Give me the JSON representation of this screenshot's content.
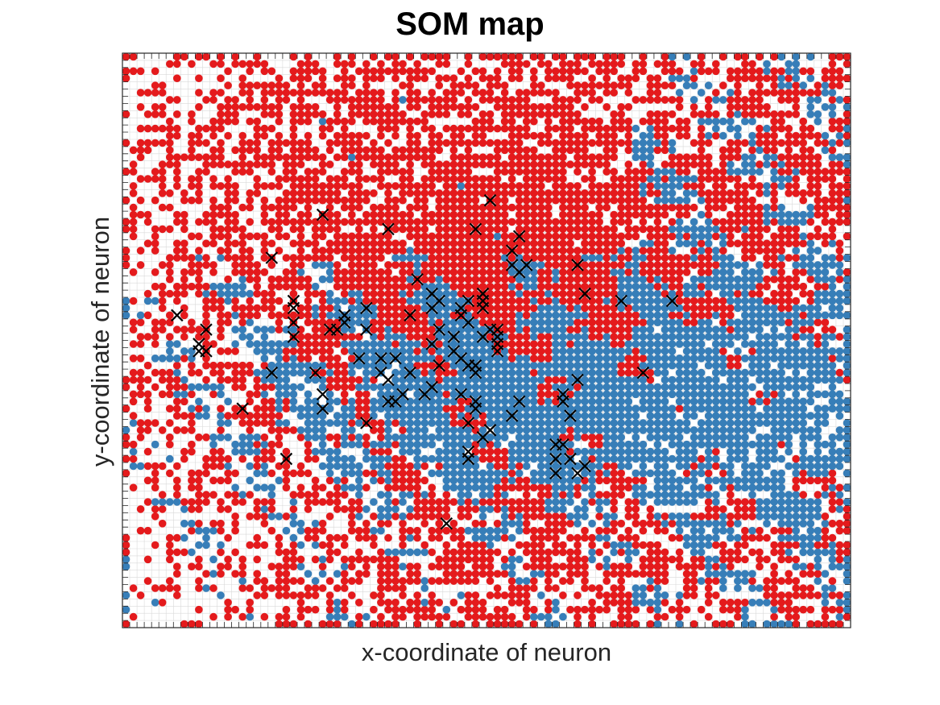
{
  "chart_data": {
    "type": "scatter",
    "title": "SOM map",
    "xlabel": "x-coordinate of neuron",
    "ylabel": "y-coordinate of neuron",
    "xlim": [
      0,
      100
    ],
    "ylim": [
      0,
      80
    ],
    "grid": true,
    "tick_labels": false,
    "lattice": {
      "cols": 100,
      "rows": 80
    },
    "class_colors": {
      "class_1": "#e41a1c",
      "class_2": "#377eb8"
    },
    "marker_color": "#000000",
    "series": [
      {
        "kind": "dots",
        "color": "#e41a1c",
        "note": "neurons with dominant class 1"
      },
      {
        "kind": "dots",
        "color": "#377eb8",
        "note": "neurons with dominant class 2"
      },
      {
        "kind": "cross",
        "color": "#000000",
        "points": [
          [
            7,
            43
          ],
          [
            11,
            41
          ],
          [
            10,
            38
          ],
          [
            11,
            38
          ],
          [
            10,
            39
          ],
          [
            16,
            30
          ],
          [
            20,
            35
          ],
          [
            20,
            51
          ],
          [
            22,
            23
          ],
          [
            23,
            40
          ],
          [
            23,
            42
          ],
          [
            23,
            44
          ],
          [
            23,
            45
          ],
          [
            26,
            35
          ],
          [
            27,
            32
          ],
          [
            27,
            30
          ],
          [
            27,
            57
          ],
          [
            28,
            41
          ],
          [
            29,
            41
          ],
          [
            30,
            43
          ],
          [
            30,
            42
          ],
          [
            32,
            37
          ],
          [
            33,
            28
          ],
          [
            33,
            41
          ],
          [
            33,
            44
          ],
          [
            35,
            37
          ],
          [
            35,
            35
          ],
          [
            36,
            31
          ],
          [
            36,
            34
          ],
          [
            37,
            37
          ],
          [
            36,
            55
          ],
          [
            37,
            31
          ],
          [
            38,
            32
          ],
          [
            39,
            43
          ],
          [
            39,
            35
          ],
          [
            40,
            48
          ],
          [
            42,
            33
          ],
          [
            42,
            44
          ],
          [
            42,
            46
          ],
          [
            42,
            39
          ],
          [
            43,
            45
          ],
          [
            43,
            41
          ],
          [
            43,
            36
          ],
          [
            41,
            32
          ],
          [
            46,
            37
          ],
          [
            47,
            36
          ],
          [
            47,
            23
          ],
          [
            47,
            28
          ],
          [
            48,
            31
          ],
          [
            49,
            46
          ],
          [
            44,
            14
          ],
          [
            45,
            38
          ],
          [
            45,
            40
          ],
          [
            46,
            43
          ],
          [
            47,
            45
          ],
          [
            47,
            42
          ],
          [
            50,
            41
          ],
          [
            47,
            24
          ],
          [
            49,
            45
          ],
          [
            46,
            32
          ],
          [
            48,
            30
          ],
          [
            48,
            36
          ],
          [
            46,
            44
          ],
          [
            49,
            44
          ],
          [
            49,
            26
          ],
          [
            50,
            27
          ],
          [
            50,
            27
          ],
          [
            51,
            39
          ],
          [
            51,
            38
          ],
          [
            49,
            40
          ],
          [
            51,
            41
          ],
          [
            50,
            59
          ],
          [
            53,
            52
          ],
          [
            53,
            50
          ],
          [
            54,
            49
          ],
          [
            48,
            55
          ],
          [
            54,
            54
          ],
          [
            54,
            31
          ],
          [
            53,
            29
          ],
          [
            55,
            50
          ],
          [
            59,
            25
          ],
          [
            59,
            23
          ],
          [
            60,
            25
          ],
          [
            59,
            21
          ],
          [
            61,
            23
          ],
          [
            62,
            21
          ],
          [
            63,
            22
          ],
          [
            63,
            46
          ],
          [
            60,
            31
          ],
          [
            61,
            29
          ],
          [
            60,
            32
          ],
          [
            62,
            34
          ],
          [
            62,
            50
          ],
          [
            68,
            45
          ],
          [
            71,
            35
          ],
          [
            75,
            45
          ],
          [
            48,
            35
          ],
          [
            51,
            40
          ]
        ]
      }
    ]
  }
}
